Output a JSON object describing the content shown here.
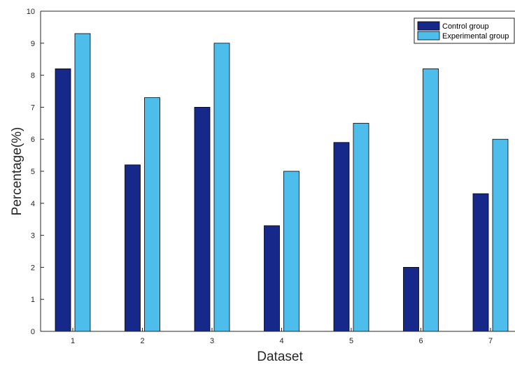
{
  "chart_data": {
    "type": "bar",
    "categories": [
      "1",
      "2",
      "3",
      "4",
      "5",
      "6",
      "7"
    ],
    "series": [
      {
        "name": "Control group",
        "values": [
          8.2,
          5.2,
          7.0,
          3.3,
          5.9,
          2.0,
          4.3
        ],
        "color": "#16288a"
      },
      {
        "name": "Experimental group",
        "values": [
          9.3,
          7.3,
          9.0,
          5.0,
          6.5,
          8.2,
          6.0
        ],
        "color": "#4dbeeb"
      }
    ],
    "xlabel": "Dataset",
    "ylabel": "Percentage(%)",
    "ylim": [
      0,
      10
    ],
    "yticks": [
      "0",
      "1",
      "2",
      "3",
      "4",
      "5",
      "6",
      "7",
      "8",
      "9",
      "10"
    ],
    "grid": false,
    "legend_position": "top-right"
  }
}
